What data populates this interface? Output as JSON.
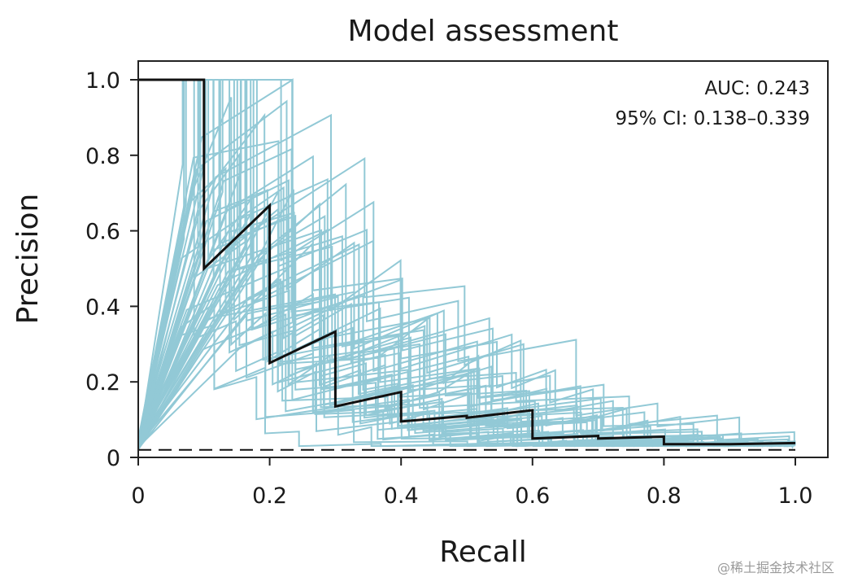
{
  "chart_data": {
    "type": "line",
    "title": "Model assessment",
    "xlabel": "Recall",
    "ylabel": "Precision",
    "xlim": [
      0,
      1.0
    ],
    "ylim": [
      0,
      1.0
    ],
    "x_ticks": [
      0,
      0.2,
      0.4,
      0.6,
      0.8,
      1.0
    ],
    "x_tick_labels": [
      "0",
      "0.2",
      "0.4",
      "0.6",
      "0.8",
      "1.0"
    ],
    "y_ticks": [
      0,
      0.2,
      0.4,
      0.6,
      0.8,
      1.0
    ],
    "y_tick_labels": [
      "0",
      "0.2",
      "0.4",
      "0.6",
      "0.8",
      "1.0"
    ],
    "annotations": {
      "auc": "AUC: 0.243",
      "ci": "95% CI: 0.138–0.339"
    },
    "baseline": {
      "name": "No-skill baseline",
      "y": 0.02,
      "style": "dashed"
    },
    "series": [
      {
        "name": "Model PR curve",
        "color": "#111111",
        "x": [
          0,
          0.1,
          0.1,
          0.2,
          0.2,
          0.3,
          0.3,
          0.4,
          0.4,
          0.5,
          0.5,
          0.6,
          0.6,
          0.7,
          0.7,
          0.8,
          0.8,
          0.9,
          1.0
        ],
        "y": [
          1.0,
          1.0,
          0.5,
          0.667,
          0.25,
          0.333,
          0.135,
          0.173,
          0.095,
          0.11,
          0.105,
          0.125,
          0.05,
          0.057,
          0.05,
          0.055,
          0.035,
          0.035,
          0.038
        ]
      }
    ],
    "bootstrap_curves": {
      "name": "Bootstrap PR curves",
      "color": "#92c9d6",
      "count": 50,
      "note": "approximate resampled curves, peaks mostly between recall 0.06 and 1.0"
    }
  },
  "watermark": "@稀土掘金技术社区"
}
